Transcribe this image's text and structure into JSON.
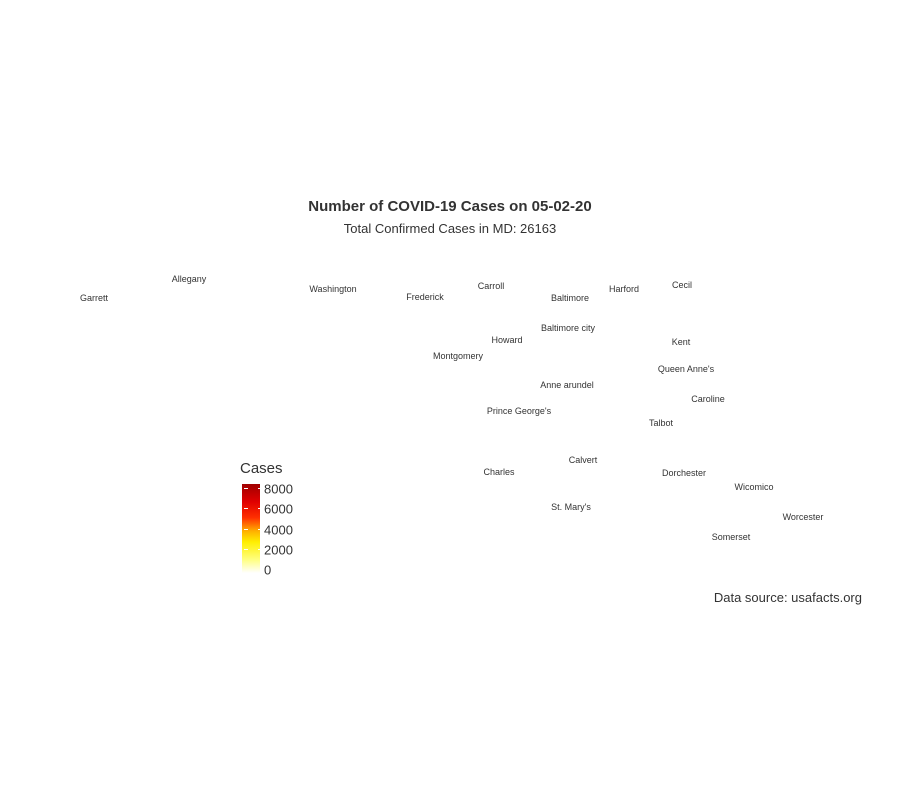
{
  "title": "Number of COVID-19 Cases on 05-02-20",
  "subtitle": "Total Confirmed Cases in MD: 26163",
  "caption": "Data source: usafacts.org",
  "legend": {
    "title": "Cases",
    "labels": [
      "8000",
      "6000",
      "4000",
      "2000",
      "0"
    ],
    "colors": {
      "low": "#ffffff",
      "mid_low": "#ffee00",
      "mid": "#ffb000",
      "mid_high": "#ff3000",
      "high": "#a00000"
    }
  },
  "counties": [
    "Allegany",
    "Garrett",
    "Washington",
    "Frederick",
    "Carroll",
    "Baltimore",
    "Harford",
    "Cecil",
    "Baltimore city",
    "Howard",
    "Kent",
    "Montgomery",
    "Queen Anne's",
    "Anne arundel",
    "Caroline",
    "Prince George's",
    "Talbot",
    "Calvert",
    "Charles",
    "Dorchester",
    "Wicomico",
    "St. Mary's",
    "Worcester",
    "Somerset"
  ]
}
